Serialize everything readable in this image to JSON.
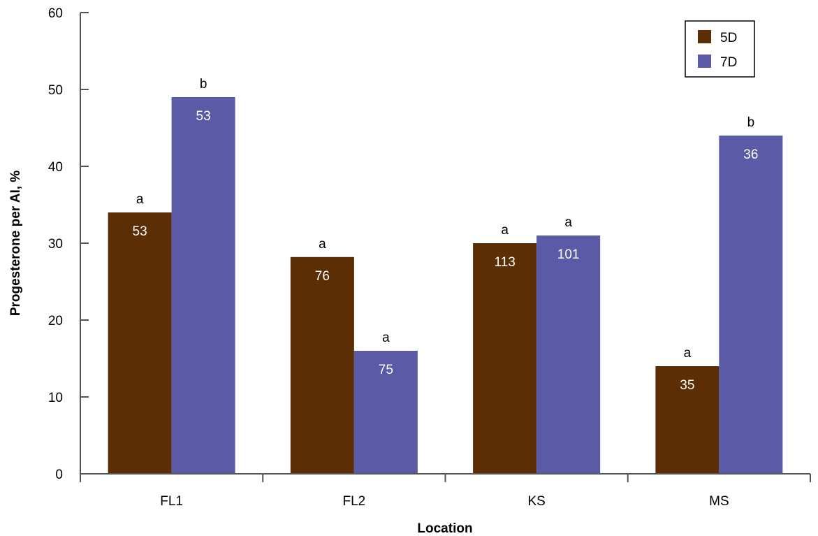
{
  "chart_data": {
    "type": "bar",
    "title": "",
    "xlabel": "Location",
    "ylabel": "Progesterone per AI, %",
    "ylim": [
      0,
      60
    ],
    "yticks": [
      0,
      10,
      20,
      30,
      40,
      50,
      60
    ],
    "grid": false,
    "legend_position": "top-right",
    "categories": [
      "FL1",
      "FL2",
      "KS",
      "MS"
    ],
    "series": [
      {
        "name": "5D",
        "color": "#5c2e06",
        "values": [
          34,
          28.2,
          30,
          14
        ],
        "n_labels": [
          "53",
          "76",
          "113",
          "35"
        ],
        "sig_letters": [
          "a",
          "a",
          "a",
          "a"
        ]
      },
      {
        "name": "7D",
        "color": "#5a5aa6",
        "values": [
          49,
          16,
          31,
          44
        ],
        "n_labels": [
          "53",
          "75",
          "101",
          "36"
        ],
        "sig_letters": [
          "b",
          "a",
          "a",
          "b"
        ]
      }
    ]
  }
}
